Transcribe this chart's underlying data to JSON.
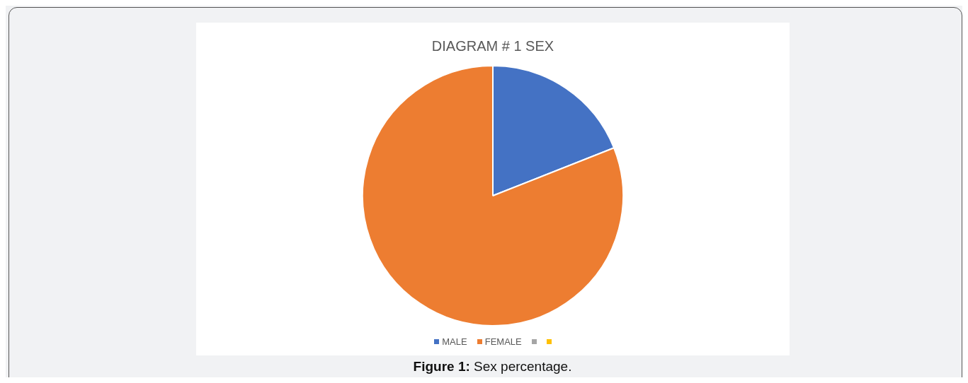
{
  "chart_data": {
    "type": "pie",
    "title": "DIAGRAM # 1 SEX",
    "categories": [
      "MALE",
      "FEMALE",
      null,
      null
    ],
    "values": [
      19,
      81,
      0,
      0
    ],
    "colors": [
      "#4472c4",
      "#ed7d31",
      "#a5a5a5",
      "#ffc000"
    ],
    "legend": "bottom",
    "annotations": [
      "Figure 1: Sex percentage."
    ]
  }
}
